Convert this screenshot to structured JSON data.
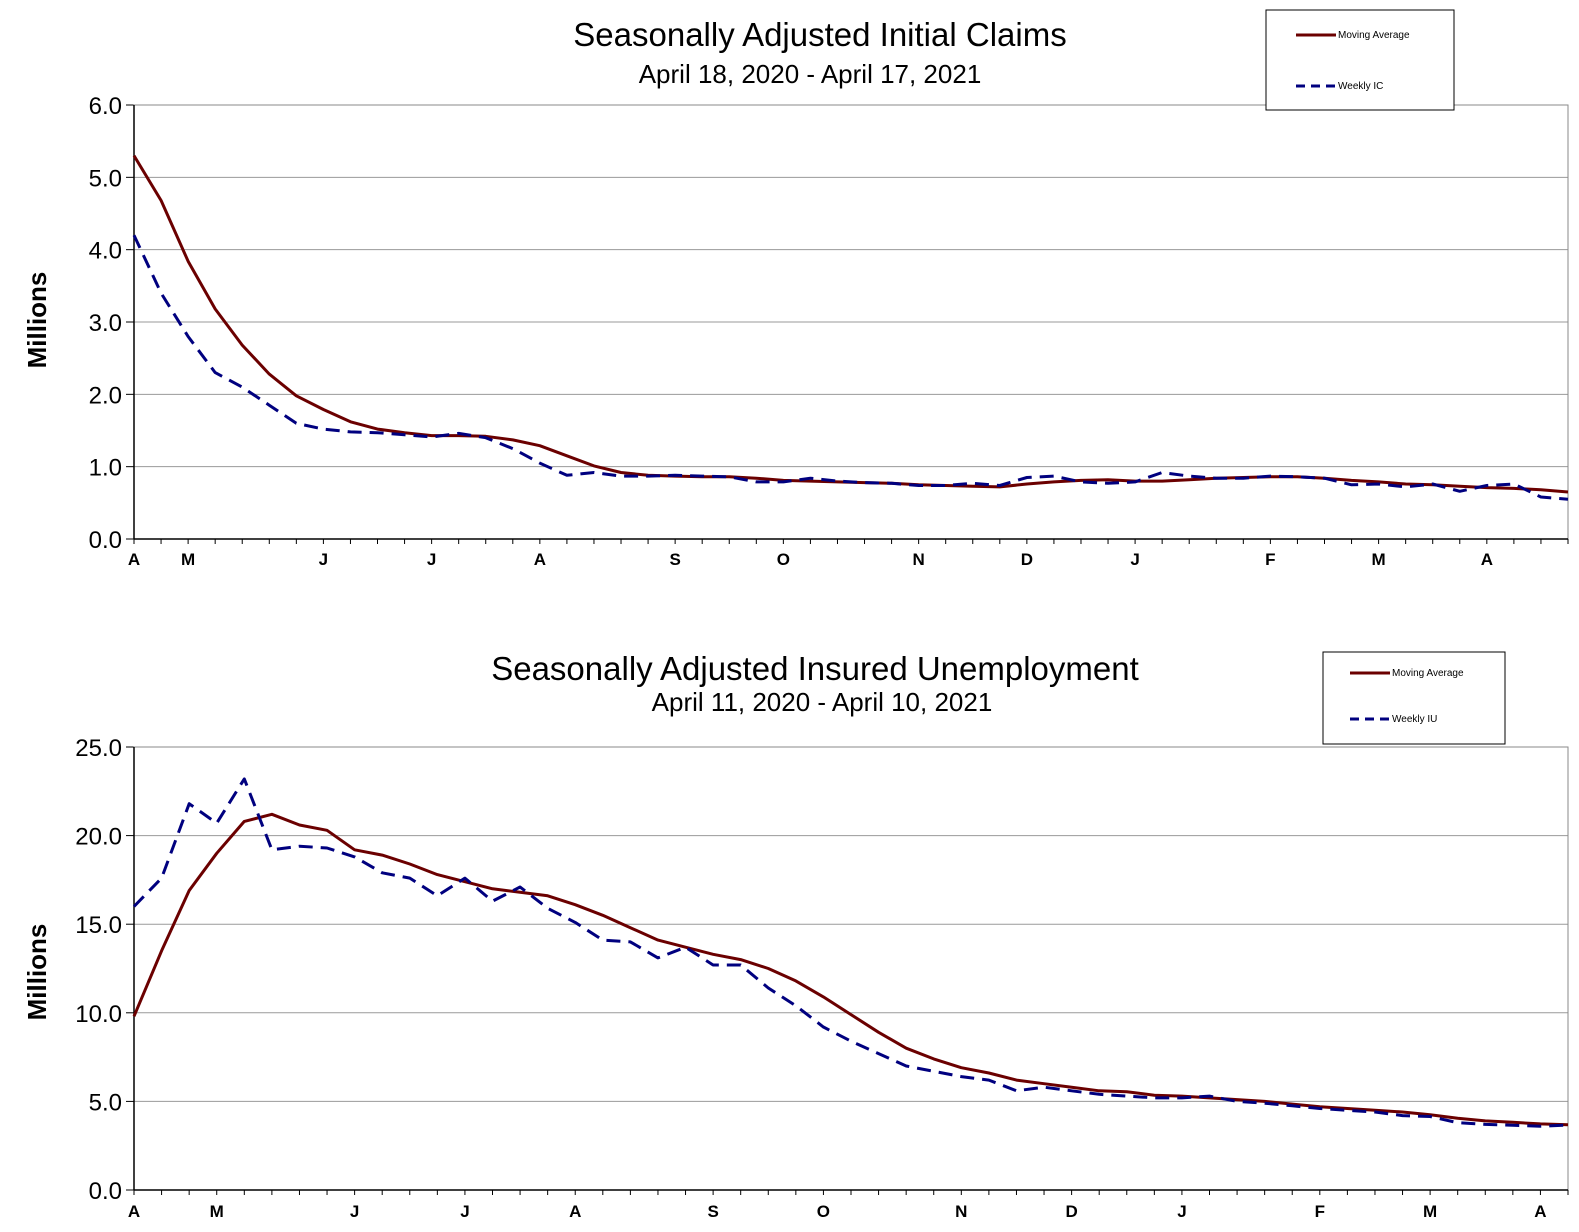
{
  "chart_data": [
    {
      "type": "line",
      "title": "Seasonally Adjusted Initial Claims",
      "subtitle": "April 18, 2020 - April 17, 2021",
      "ylabel": "Millions",
      "xlabel": "",
      "ylim": [
        0,
        6
      ],
      "yticks": [
        "0.0",
        "1.0",
        "2.0",
        "3.0",
        "4.0",
        "5.0",
        "6.0"
      ],
      "month_ticks": [
        {
          "label": "A",
          "week": 0
        },
        {
          "label": "M",
          "week": 2
        },
        {
          "label": "J",
          "week": 7
        },
        {
          "label": "J",
          "week": 11
        },
        {
          "label": "A",
          "week": 15
        },
        {
          "label": "S",
          "week": 20
        },
        {
          "label": "O",
          "week": 24
        },
        {
          "label": "N",
          "week": 29
        },
        {
          "label": "D",
          "week": 33
        },
        {
          "label": "J",
          "week": 37
        },
        {
          "label": "F",
          "week": 42
        },
        {
          "label": "M",
          "week": 46
        },
        {
          "label": "A",
          "week": 50
        }
      ],
      "grid": true,
      "legend_position": "top-right",
      "series": [
        {
          "name": "Moving Average",
          "color": "#6b0000",
          "style": "solid",
          "values": [
            5.3,
            4.68,
            3.84,
            3.18,
            2.68,
            2.28,
            1.98,
            1.79,
            1.62,
            1.52,
            1.47,
            1.43,
            1.43,
            1.42,
            1.37,
            1.29,
            1.15,
            1.01,
            0.92,
            0.88,
            0.87,
            0.86,
            0.86,
            0.84,
            0.81,
            0.8,
            0.79,
            0.78,
            0.77,
            0.75,
            0.74,
            0.73,
            0.72,
            0.76,
            0.79,
            0.81,
            0.82,
            0.8,
            0.8,
            0.82,
            0.84,
            0.85,
            0.86,
            0.86,
            0.84,
            0.81,
            0.79,
            0.76,
            0.75,
            0.73,
            0.71,
            0.7,
            0.68,
            0.65
          ]
        },
        {
          "name": "Weekly IC",
          "color": "#00007f",
          "style": "dashed",
          "values": [
            4.2,
            3.4,
            2.8,
            2.3,
            2.1,
            1.85,
            1.6,
            1.52,
            1.48,
            1.47,
            1.44,
            1.41,
            1.46,
            1.4,
            1.25,
            1.05,
            0.88,
            0.92,
            0.87,
            0.87,
            0.88,
            0.87,
            0.86,
            0.79,
            0.79,
            0.84,
            0.8,
            0.78,
            0.77,
            0.74,
            0.74,
            0.77,
            0.74,
            0.85,
            0.87,
            0.79,
            0.77,
            0.79,
            0.92,
            0.87,
            0.84,
            0.84,
            0.87,
            0.86,
            0.84,
            0.75,
            0.76,
            0.72,
            0.76,
            0.66,
            0.74,
            0.76,
            0.58,
            0.55
          ]
        }
      ]
    },
    {
      "type": "line",
      "title": "Seasonally Adjusted Insured Unemployment",
      "subtitle": "April 11, 2020 - April 10, 2021",
      "ylabel": "Millions",
      "xlabel": "",
      "ylim": [
        0,
        25
      ],
      "yticks": [
        "0.0",
        "5.0",
        "10.0",
        "15.0",
        "20.0",
        "25.0"
      ],
      "month_ticks": [
        {
          "label": "A",
          "week": 0
        },
        {
          "label": "M",
          "week": 3
        },
        {
          "label": "J",
          "week": 8
        },
        {
          "label": "J",
          "week": 12
        },
        {
          "label": "A",
          "week": 16
        },
        {
          "label": "S",
          "week": 21
        },
        {
          "label": "O",
          "week": 25
        },
        {
          "label": "N",
          "week": 30
        },
        {
          "label": "D",
          "week": 34
        },
        {
          "label": "J",
          "week": 38
        },
        {
          "label": "F",
          "week": 43
        },
        {
          "label": "M",
          "week": 47
        },
        {
          "label": "A",
          "week": 51
        }
      ],
      "grid": true,
      "legend_position": "top-right",
      "series": [
        {
          "name": "Moving Average",
          "color": "#6b0000",
          "style": "solid",
          "values": [
            9.8,
            13.5,
            16.9,
            19,
            20.8,
            21.2,
            20.6,
            20.3,
            19.2,
            18.9,
            18.4,
            17.8,
            17.4,
            17.0,
            16.8,
            16.6,
            16.1,
            15.5,
            14.8,
            14.1,
            13.7,
            13.3,
            13.0,
            12.5,
            11.8,
            10.9,
            9.9,
            8.9,
            8.0,
            7.4,
            6.9,
            6.6,
            6.2,
            6.0,
            5.8,
            5.6,
            5.55,
            5.35,
            5.3,
            5.2,
            5.1,
            5.0,
            4.85,
            4.7,
            4.6,
            4.5,
            4.4,
            4.25,
            4.05,
            3.9,
            3.82,
            3.73,
            3.68
          ]
        },
        {
          "name": "Weekly IU",
          "color": "#00007f",
          "style": "dashed",
          "values": [
            16,
            17.6,
            21.8,
            20.7,
            23.2,
            19.2,
            19.4,
            19.3,
            18.8,
            17.9,
            17.6,
            16.6,
            17.6,
            16.3,
            17.1,
            15.9,
            15.1,
            14.1,
            14.0,
            13.1,
            13.7,
            12.7,
            12.7,
            11.4,
            10.4,
            9.2,
            8.4,
            7.7,
            7.0,
            6.7,
            6.4,
            6.2,
            5.6,
            5.8,
            5.6,
            5.4,
            5.3,
            5.2,
            5.2,
            5.3,
            5.0,
            4.9,
            4.75,
            4.6,
            4.5,
            4.4,
            4.2,
            4.15,
            3.8,
            3.7,
            3.65,
            3.6,
            3.66
          ]
        }
      ]
    }
  ]
}
